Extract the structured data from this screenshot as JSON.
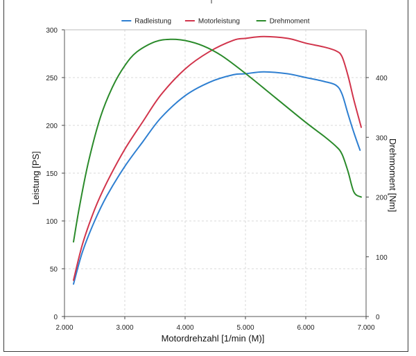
{
  "chart_data": {
    "type": "line",
    "xlabel": "Motordrehzahl [1/min (M)]",
    "ylabel_left": "Leistung [PS]",
    "ylabel_right": "Drehmoment [Nm]",
    "xlim": [
      2000,
      7000
    ],
    "ylim_left": [
      0,
      300
    ],
    "ylim_right": [
      0,
      480
    ],
    "x_ticks": [
      2000,
      3000,
      4000,
      5000,
      6000,
      7000
    ],
    "x_tick_labels": [
      "2.000",
      "3.000",
      "4.000",
      "5.000",
      "6.000",
      "7.000"
    ],
    "y_left_ticks": [
      0,
      50,
      100,
      150,
      200,
      250,
      300
    ],
    "y_left_tick_labels": [
      "0",
      "50",
      "100",
      "150",
      "200",
      "250",
      "300"
    ],
    "y_right_ticks": [
      0,
      100,
      200,
      300,
      400
    ],
    "y_right_tick_labels": [
      "0",
      "100",
      "200",
      "300",
      "400"
    ],
    "grid": true,
    "legend_position": "top-center",
    "series": [
      {
        "name": "Radleistung",
        "axis": "left",
        "color": "#2e7fd1",
        "points": [
          [
            2150,
            34
          ],
          [
            2300,
            68
          ],
          [
            2500,
            100
          ],
          [
            2700,
            126
          ],
          [
            3000,
            157
          ],
          [
            3300,
            183
          ],
          [
            3600,
            208
          ],
          [
            4000,
            231
          ],
          [
            4400,
            245
          ],
          [
            4800,
            253
          ],
          [
            5000,
            254
          ],
          [
            5300,
            256
          ],
          [
            5700,
            254
          ],
          [
            6000,
            250
          ],
          [
            6300,
            246
          ],
          [
            6500,
            242
          ],
          [
            6600,
            233
          ],
          [
            6700,
            212
          ],
          [
            6800,
            192
          ],
          [
            6900,
            174
          ]
        ]
      },
      {
        "name": "Motorleistung",
        "axis": "left",
        "color": "#d1344b",
        "points": [
          [
            2150,
            38
          ],
          [
            2300,
            76
          ],
          [
            2500,
            112
          ],
          [
            2700,
            140
          ],
          [
            3000,
            175
          ],
          [
            3300,
            204
          ],
          [
            3600,
            232
          ],
          [
            4000,
            259
          ],
          [
            4400,
            277
          ],
          [
            4800,
            289
          ],
          [
            5000,
            291
          ],
          [
            5300,
            293
          ],
          [
            5700,
            291
          ],
          [
            6000,
            286
          ],
          [
            6300,
            282
          ],
          [
            6500,
            278
          ],
          [
            6600,
            272
          ],
          [
            6700,
            252
          ],
          [
            6800,
            226
          ],
          [
            6920,
            198
          ]
        ]
      },
      {
        "name": "Drehmoment",
        "axis": "right",
        "color": "#2a8a2a",
        "points": [
          [
            2150,
            125
          ],
          [
            2250,
            185
          ],
          [
            2400,
            260
          ],
          [
            2600,
            335
          ],
          [
            2800,
            385
          ],
          [
            3000,
            420
          ],
          [
            3200,
            443
          ],
          [
            3500,
            460
          ],
          [
            3750,
            464
          ],
          [
            4000,
            462
          ],
          [
            4300,
            453
          ],
          [
            4600,
            437
          ],
          [
            5000,
            407
          ],
          [
            5500,
            366
          ],
          [
            6000,
            325
          ],
          [
            6300,
            302
          ],
          [
            6500,
            285
          ],
          [
            6600,
            272
          ],
          [
            6700,
            243
          ],
          [
            6800,
            208
          ],
          [
            6920,
            200
          ]
        ]
      }
    ]
  }
}
